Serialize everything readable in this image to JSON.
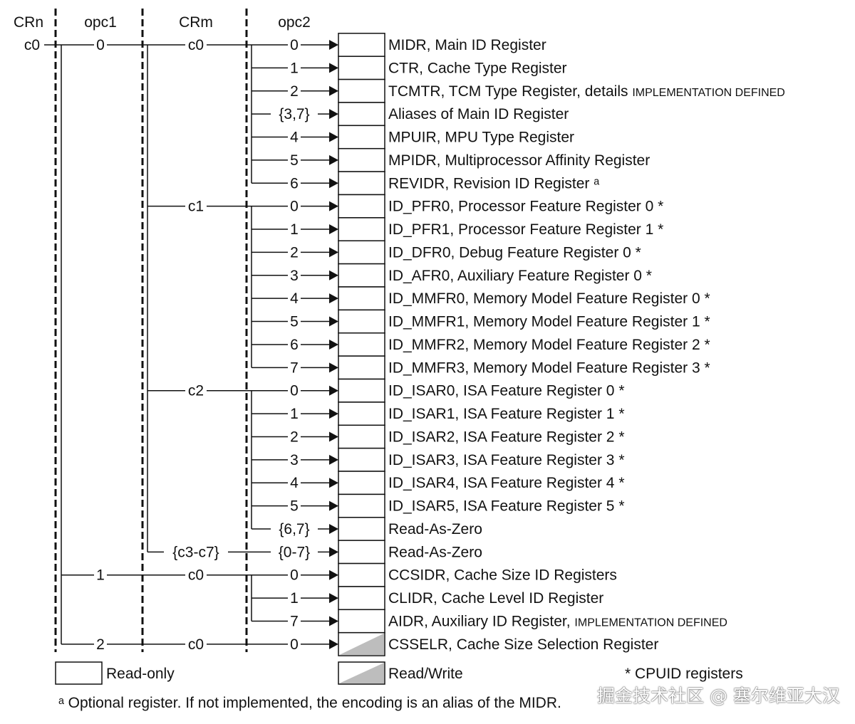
{
  "headers": {
    "crn": "CRn",
    "opc1": "opc1",
    "crm": "CRm",
    "opc2": "opc2"
  },
  "crn_label": "c0",
  "rows": [
    {
      "opc1": "0",
      "crm": "c0",
      "opc2": "0",
      "name": "MIDR, Main ID Register",
      "small": "",
      "rw": false
    },
    {
      "opc2": "1",
      "name": "CTR, Cache Type Register",
      "small": "",
      "rw": false
    },
    {
      "opc2": "2",
      "name": "TCMTR, TCM Type Register, details ",
      "small": "IMPLEMENTATION DEFINED",
      "rw": false
    },
    {
      "opc2": "{3,7}",
      "name": "Aliases of Main ID Register",
      "small": "",
      "rw": false
    },
    {
      "opc2": "4",
      "name": "MPUIR, MPU Type Register",
      "small": "",
      "rw": false
    },
    {
      "opc2": "5",
      "name": "MPIDR, Multiprocessor Affinity Register",
      "small": "",
      "rw": false
    },
    {
      "opc2": "6",
      "name": "REVIDR, Revision ID Register ᵃ",
      "small": "",
      "rw": false
    },
    {
      "crm": "c1",
      "opc2": "0",
      "name": "ID_PFR0, Processor Feature Register 0 *",
      "small": "",
      "rw": false
    },
    {
      "opc2": "1",
      "name": "ID_PFR1, Processor Feature Register 1 *",
      "small": "",
      "rw": false
    },
    {
      "opc2": "2",
      "name": "ID_DFR0, Debug Feature Register 0 *",
      "small": "",
      "rw": false
    },
    {
      "opc2": "3",
      "name": "ID_AFR0, Auxiliary Feature Register 0 *",
      "small": "",
      "rw": false
    },
    {
      "opc2": "4",
      "name": "ID_MMFR0, Memory Model Feature Register 0 *",
      "small": "",
      "rw": false
    },
    {
      "opc2": "5",
      "name": "ID_MMFR1, Memory Model Feature Register 1 *",
      "small": "",
      "rw": false
    },
    {
      "opc2": "6",
      "name": "ID_MMFR2, Memory Model Feature Register 2 *",
      "small": "",
      "rw": false
    },
    {
      "opc2": "7",
      "name": "ID_MMFR3, Memory Model Feature Register 3 *",
      "small": "",
      "rw": false
    },
    {
      "crm": "c2",
      "opc2": "0",
      "name": "ID_ISAR0, ISA Feature Register 0 *",
      "small": "",
      "rw": false
    },
    {
      "opc2": "1",
      "name": "ID_ISAR1, ISA Feature Register 1 *",
      "small": "",
      "rw": false
    },
    {
      "opc2": "2",
      "name": "ID_ISAR2, ISA Feature Register 2 *",
      "small": "",
      "rw": false
    },
    {
      "opc2": "3",
      "name": "ID_ISAR3, ISA Feature Register 3 *",
      "small": "",
      "rw": false
    },
    {
      "opc2": "4",
      "name": "ID_ISAR4, ISA Feature Register 4 *",
      "small": "",
      "rw": false
    },
    {
      "opc2": "5",
      "name": "ID_ISAR5, ISA Feature Register 5 *",
      "small": "",
      "rw": false
    },
    {
      "opc2": "{6,7}",
      "name": "Read-As-Zero",
      "small": "",
      "rw": false
    },
    {
      "crm": "{c3-c7}",
      "opc2": "{0-7}",
      "name": "Read-As-Zero",
      "small": "",
      "rw": false
    },
    {
      "opc1": "1",
      "crm": "c0",
      "opc2": "0",
      "name": "CCSIDR, Cache Size ID Registers",
      "small": "",
      "rw": false
    },
    {
      "opc2": "1",
      "name": "CLIDR, Cache Level ID Register",
      "small": "",
      "rw": false
    },
    {
      "opc2": "7",
      "name": "AIDR, Auxiliary ID Register, ",
      "small": "IMPLEMENTATION DEFINED",
      "rw": false
    },
    {
      "opc1": "2",
      "crm": "c0",
      "opc2": "0",
      "name": "CSSELR, Cache Size Selection Register",
      "small": "",
      "rw": true
    }
  ],
  "legend": {
    "read_only": "Read-only",
    "read_write": "Read/Write",
    "cpuid": "* CPUID registers"
  },
  "footnote": "ᵃ Optional register. If not implemented, the encoding is an alias of the MIDR.",
  "watermark": "掘金技术社区 @ 塞尔维亚大汉",
  "colors": {
    "rw_fill": "#bdbdbd",
    "line": "#111111"
  }
}
